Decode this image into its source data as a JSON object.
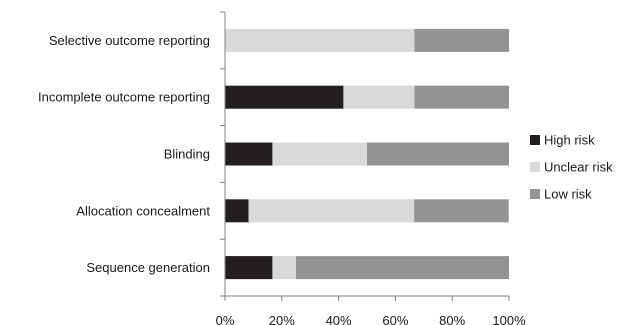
{
  "chart_data": {
    "type": "bar",
    "orientation": "horizontal",
    "stacked": true,
    "categories": [
      "Selective outcome reporting",
      "Incomplete outcome reporting",
      "Blinding",
      "Allocation concealment",
      "Sequence generation"
    ],
    "series": [
      {
        "name": "High risk",
        "color": "#231f20",
        "values": [
          0,
          41.7,
          16.7,
          8.3,
          16.7
        ]
      },
      {
        "name": "Unclear risk",
        "color": "#d9d9d9",
        "values": [
          66.7,
          25.0,
          33.3,
          58.3,
          8.3
        ]
      },
      {
        "name": "Low risk",
        "color": "#939393",
        "values": [
          33.3,
          33.3,
          50.0,
          33.3,
          75.0
        ]
      }
    ],
    "xlim": [
      0,
      100
    ],
    "x_ticks": [
      0,
      20,
      40,
      60,
      80,
      100
    ],
    "x_tick_labels": [
      "0%",
      "20%",
      "40%",
      "60%",
      "80%",
      "100%"
    ],
    "title": "",
    "xlabel": "",
    "ylabel": "",
    "grid": false,
    "legend_position": "right"
  }
}
